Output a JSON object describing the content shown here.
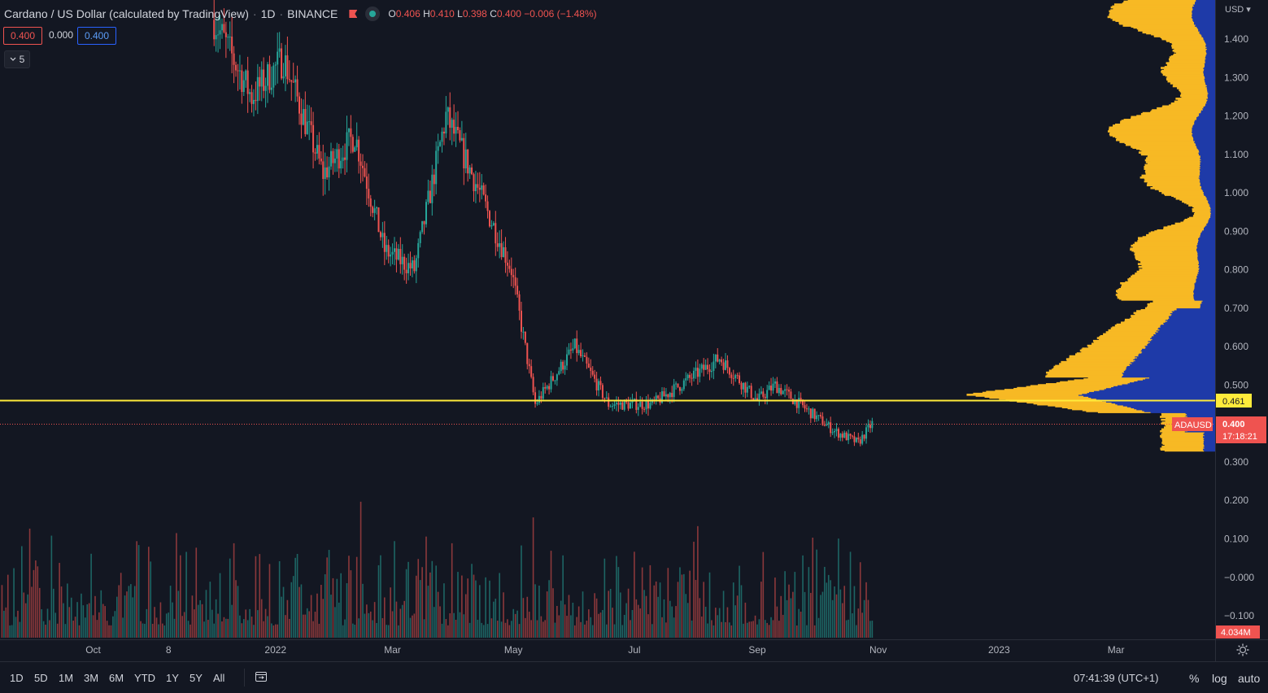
{
  "header": {
    "title": "Cardano / US Dollar (calculated by TradingView)",
    "interval": "1D",
    "exchange": "BINANCE",
    "ohlc": {
      "o_label": "O",
      "o": "0.406",
      "h_label": "H",
      "h": "0.410",
      "l_label": "L",
      "l": "0.398",
      "c_label": "C",
      "c": "0.400",
      "change": "−0.006 (−1.48%)"
    },
    "bid": "0.400",
    "spread": "0.000",
    "ask": "0.400",
    "indicators_count": "5"
  },
  "price_axis": {
    "currency": "USD",
    "ticks": [
      "1.400",
      "1.300",
      "1.200",
      "1.100",
      "1.000",
      "0.900",
      "0.800",
      "0.700",
      "0.600",
      "0.500",
      "0.300",
      "0.200",
      "0.100",
      "−0.000",
      "−0.100"
    ],
    "poc_label": "0.461",
    "symbol_label": "ADAUSD",
    "last_price": "0.400",
    "countdown": "17:18:21",
    "volume_label": "4.034M"
  },
  "time_axis": {
    "ticks": [
      "Oct",
      "8",
      "2022",
      "Mar",
      "May",
      "Jul",
      "Sep",
      "Nov",
      "2023",
      "Mar"
    ]
  },
  "bottom_toolbar": {
    "ranges": [
      "1D",
      "5D",
      "1M",
      "3M",
      "6M",
      "YTD",
      "1Y",
      "5Y",
      "All"
    ],
    "time": "07:41:39 (UTC+1)",
    "percent": "%",
    "log": "log",
    "auto": "auto"
  },
  "colors": {
    "background": "#131722",
    "up": "#26a69a",
    "down": "#ef5350",
    "poc_line": "#ffeb3b",
    "vp_value_area": "#1e3aa8",
    "vp_profile": "#f7b924"
  },
  "icons": {
    "flag": "flag-icon",
    "status": "market-open-dot-icon",
    "collapse": "chevron-down-icon",
    "replay": "replay-icon",
    "settings": "gear-icon"
  },
  "chart_data": {
    "type": "candlestick",
    "symbol": "ADAUSD",
    "interval": "1D",
    "y_range": [
      -0.15,
      1.5
    ],
    "x_range": [
      "2021-08-15",
      "2023-04-20"
    ],
    "key_points": [
      {
        "date": "2021-12-01",
        "price": 1.45
      },
      {
        "date": "2021-12-20",
        "price": 1.25
      },
      {
        "date": "2022-01-05",
        "price": 1.35
      },
      {
        "date": "2022-01-25",
        "price": 1.05
      },
      {
        "date": "2022-02-10",
        "price": 1.15
      },
      {
        "date": "2022-02-25",
        "price": 0.85
      },
      {
        "date": "2022-03-12",
        "price": 0.8
      },
      {
        "date": "2022-03-28",
        "price": 1.2
      },
      {
        "date": "2022-04-10",
        "price": 1.05
      },
      {
        "date": "2022-04-30",
        "price": 0.8
      },
      {
        "date": "2022-05-12",
        "price": 0.45
      },
      {
        "date": "2022-06-01",
        "price": 0.6
      },
      {
        "date": "2022-06-18",
        "price": 0.45
      },
      {
        "date": "2022-07-10",
        "price": 0.45
      },
      {
        "date": "2022-08-13",
        "price": 0.57
      },
      {
        "date": "2022-09-01",
        "price": 0.46
      },
      {
        "date": "2022-09-10",
        "price": 0.5
      },
      {
        "date": "2022-10-10",
        "price": 0.38
      },
      {
        "date": "2022-10-22",
        "price": 0.35
      },
      {
        "date": "2022-10-29",
        "price": 0.4
      }
    ],
    "point_of_control": 0.461,
    "last_price": 0.4,
    "last_volume": "4.034M"
  }
}
